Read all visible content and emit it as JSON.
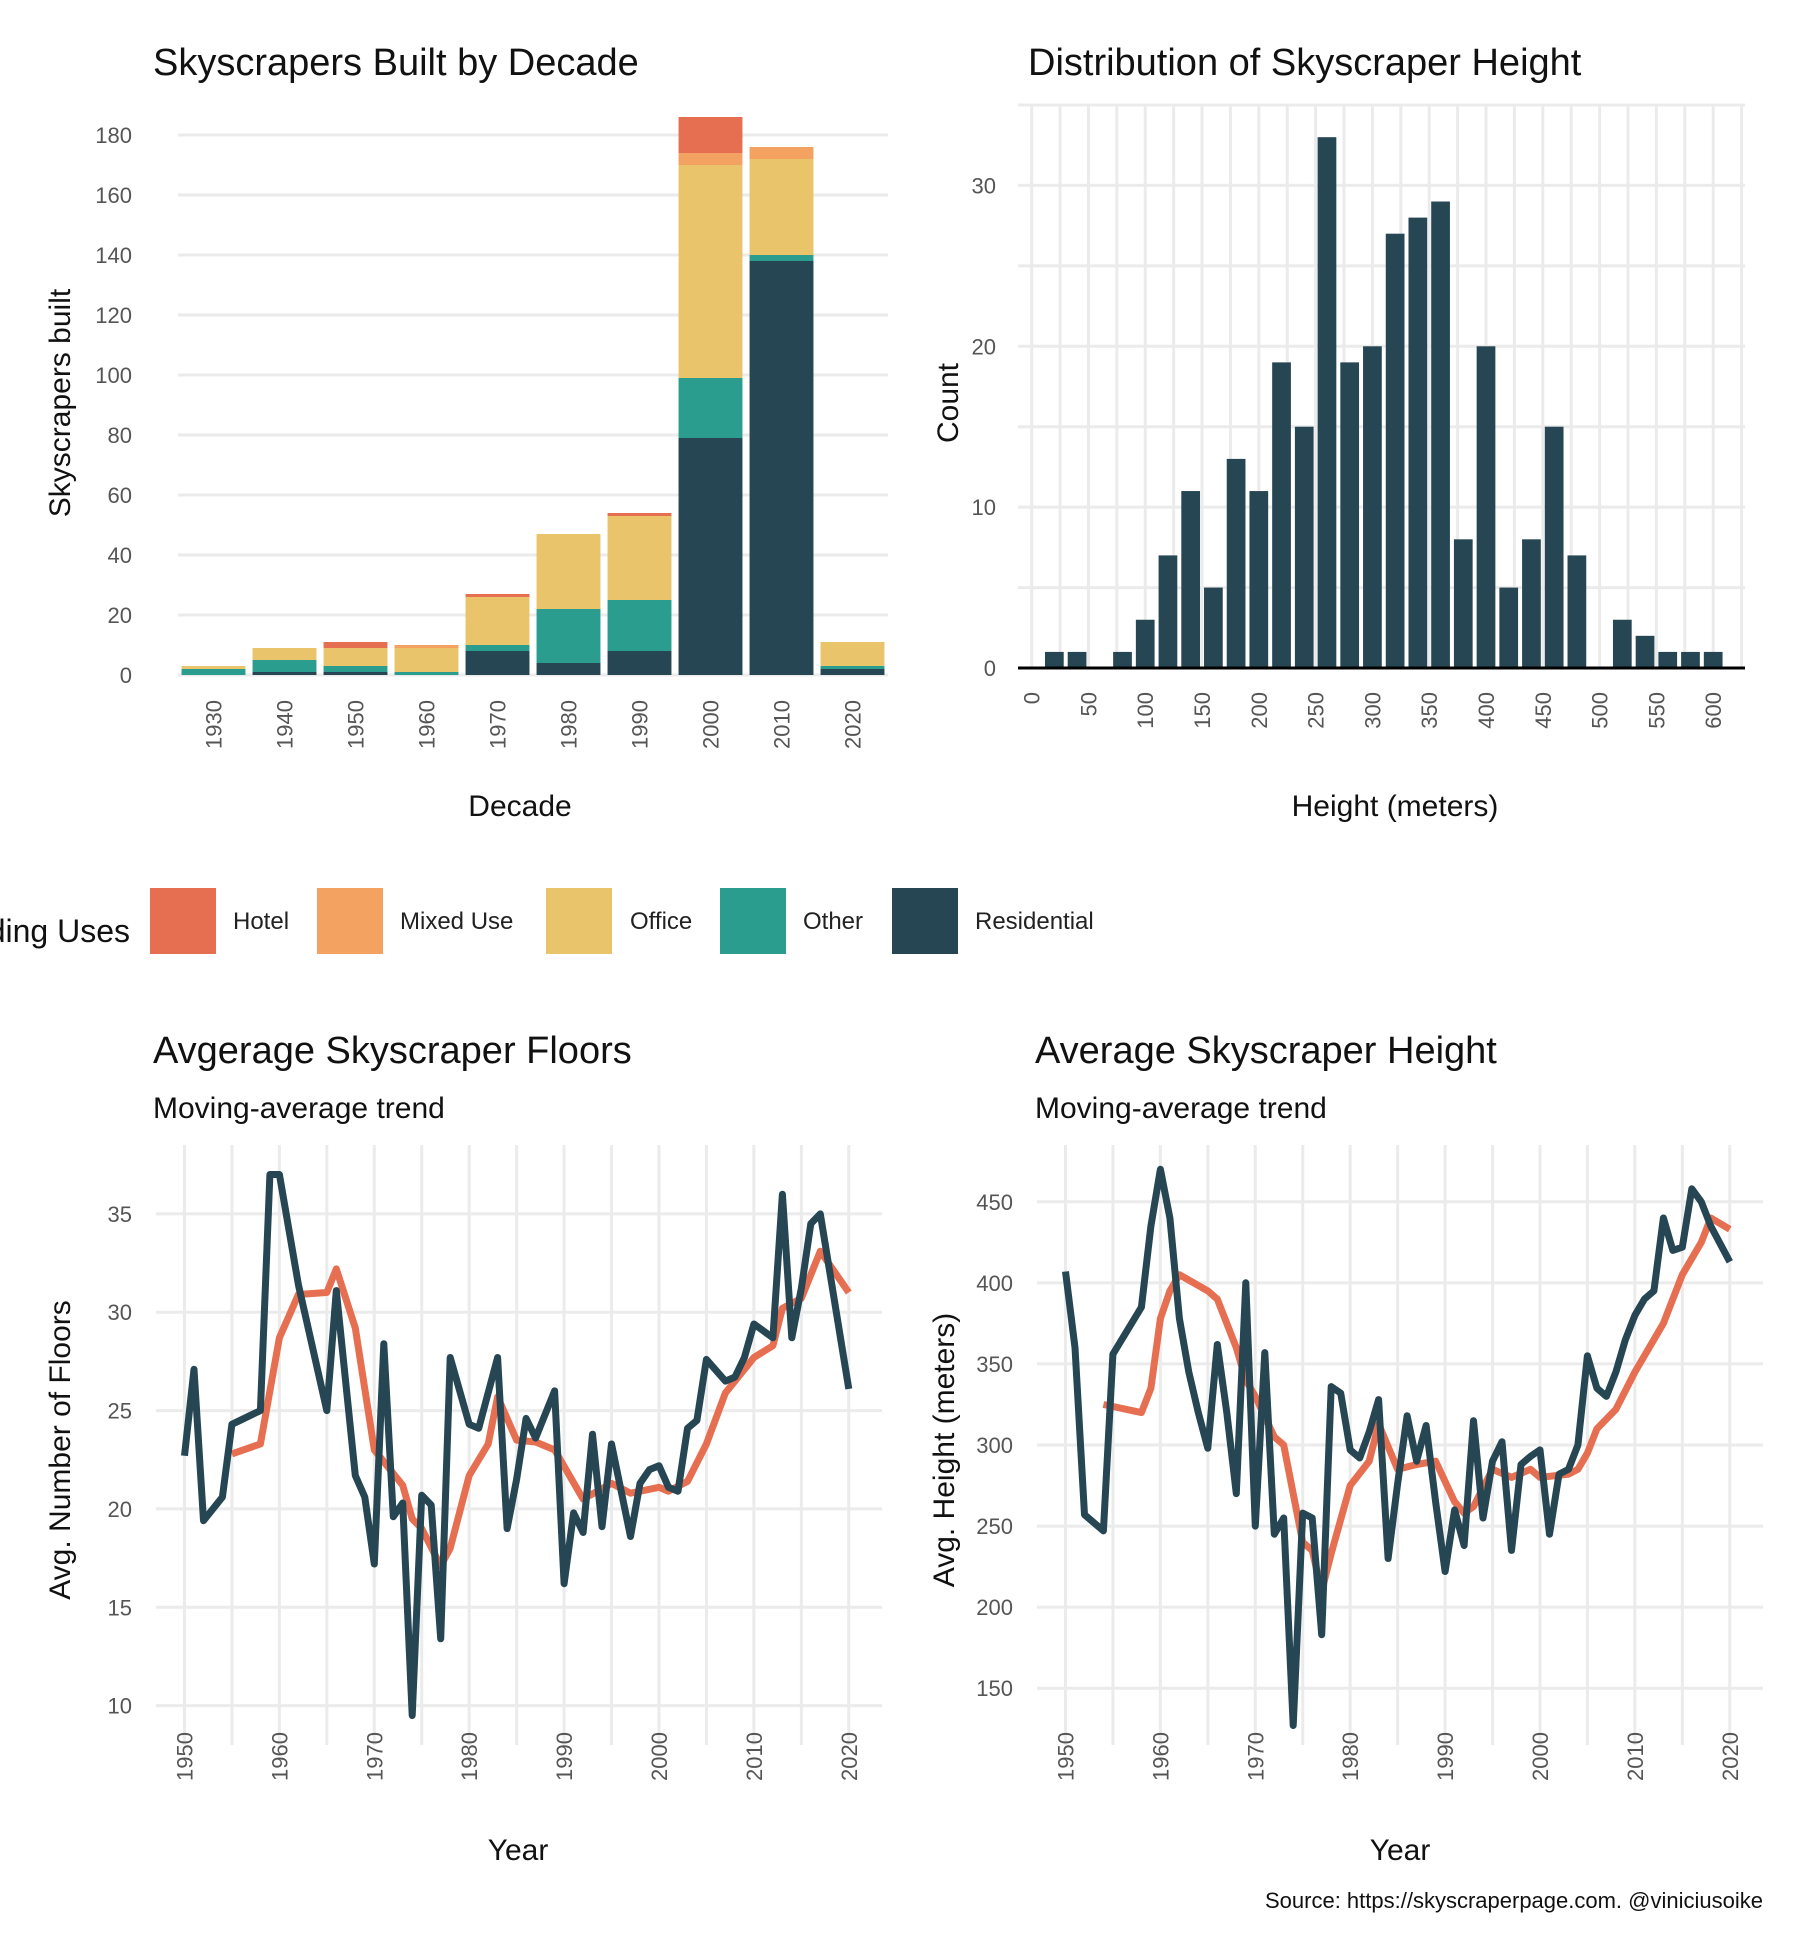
{
  "legend": {
    "title": "Building Uses",
    "items": [
      {
        "label": "Hotel",
        "color": "#e76f51"
      },
      {
        "label": "Mixed Use",
        "color": "#f4a261"
      },
      {
        "label": "Office",
        "color": "#e9c46a"
      },
      {
        "label": "Other",
        "color": "#2a9d8f"
      },
      {
        "label": "Residential",
        "color": "#264653"
      }
    ]
  },
  "source": "Source: https://skyscraperpage.com. @viniciusoike",
  "chart_data": [
    {
      "type": "bar",
      "title": "Skyscrapers Built by Decade",
      "xlabel": "Decade",
      "ylabel": "Skyscrapers built",
      "categories": [
        "1930",
        "1940",
        "1950",
        "1960",
        "1970",
        "1980",
        "1990",
        "2000",
        "2010",
        "2020"
      ],
      "ylim": [
        0,
        190
      ],
      "yticks": [
        0,
        20,
        40,
        60,
        80,
        100,
        120,
        140,
        160,
        180
      ],
      "stacked": true,
      "series": [
        {
          "name": "Residential",
          "color": "#264653",
          "values": [
            0,
            1,
            1,
            0,
            8,
            4,
            8,
            79,
            138,
            2
          ]
        },
        {
          "name": "Other",
          "color": "#2a9d8f",
          "values": [
            2,
            4,
            2,
            1,
            2,
            18,
            17,
            20,
            2,
            1
          ]
        },
        {
          "name": "Office",
          "color": "#e9c46a",
          "values": [
            1,
            4,
            6,
            8,
            16,
            25,
            28,
            71,
            32,
            8
          ]
        },
        {
          "name": "Mixed Use",
          "color": "#f4a261",
          "values": [
            0,
            0,
            0,
            1,
            0,
            0,
            0,
            4,
            4,
            0
          ]
        },
        {
          "name": "Hotel",
          "color": "#e76f51",
          "values": [
            0,
            0,
            2,
            0,
            1,
            0,
            1,
            12,
            0,
            0
          ]
        }
      ]
    },
    {
      "type": "bar",
      "title": "Distribution of Skyscraper Height",
      "xlabel": "Height (meters)",
      "ylabel": "Count",
      "bin_width": 20,
      "bin_centers": [
        20,
        40,
        60,
        80,
        100,
        120,
        140,
        160,
        180,
        200,
        220,
        240,
        260,
        280,
        300,
        320,
        340,
        360,
        380,
        400,
        420,
        440,
        460,
        480,
        500,
        520,
        540,
        560,
        580,
        600
      ],
      "values": [
        1,
        1,
        0,
        1,
        3,
        7,
        11,
        5,
        13,
        11,
        19,
        15,
        33,
        19,
        20,
        27,
        28,
        29,
        8,
        20,
        5,
        8,
        15,
        7,
        0,
        3,
        2,
        1,
        1,
        1
      ],
      "color": "#264653",
      "xlim": [
        -12,
        628
      ],
      "ylim": [
        0,
        35
      ],
      "xticks": [
        0,
        50,
        100,
        150,
        200,
        250,
        300,
        350,
        400,
        450,
        500,
        550,
        600
      ],
      "yticks": [
        0,
        10,
        20,
        30
      ]
    },
    {
      "type": "line",
      "title": "Avgerage Skyscraper Floors",
      "subtitle": "Moving-average trend",
      "xlabel": "Year",
      "ylabel": "Avg. Number of Floors",
      "xlim": [
        1947,
        2023.5
      ],
      "ylim": [
        8,
        38.5
      ],
      "xticks": [
        1950,
        1960,
        1970,
        1980,
        1990,
        2000,
        2010,
        2020
      ],
      "yticks": [
        10,
        15,
        20,
        25,
        30,
        35
      ],
      "series": [
        {
          "name": "Moving average",
          "color": "#e76f51",
          "x": [
            1955,
            1958,
            1960,
            1962,
            1965,
            1966,
            1968,
            1970,
            1973,
            1974,
            1975,
            1977,
            1978,
            1980,
            1982,
            1983,
            1985,
            1987,
            1989,
            1992,
            1995,
            1997,
            2000,
            2001,
            2003,
            2005,
            2007,
            2010,
            2012,
            2013,
            2015,
            2017,
            2020
          ],
          "y": [
            22.8,
            23.3,
            28.7,
            30.9,
            31.0,
            32.2,
            29.2,
            23.0,
            21.2,
            19.5,
            19.0,
            17.1,
            18.0,
            21.7,
            23.3,
            25.7,
            23.5,
            23.4,
            23.0,
            20.5,
            21.3,
            20.8,
            21.1,
            20.9,
            21.4,
            23.3,
            25.9,
            27.7,
            28.3,
            30.2,
            30.7,
            33.1,
            31.0
          ]
        },
        {
          "name": "Average",
          "color": "#264653",
          "x": [
            1950,
            1951,
            1952,
            1954,
            1955,
            1958,
            1959,
            1960,
            1962,
            1965,
            1966,
            1968,
            1969,
            1970,
            1971,
            1972,
            1973,
            1974,
            1975,
            1976,
            1977,
            1978,
            1980,
            1981,
            1983,
            1984,
            1985,
            1986,
            1987,
            1989,
            1990,
            1991,
            1992,
            1993,
            1994,
            1995,
            1997,
            1998,
            1999,
            2000,
            2001,
            2002,
            2003,
            2004,
            2005,
            2007,
            2008,
            2009,
            2010,
            2012,
            2013,
            2014,
            2015,
            2016,
            2017,
            2020
          ],
          "y": [
            22.7,
            27.1,
            19.4,
            20.6,
            24.3,
            25.0,
            37.0,
            37.0,
            31.4,
            25.0,
            31.1,
            21.7,
            20.6,
            17.2,
            28.4,
            19.6,
            20.3,
            9.5,
            20.7,
            20.2,
            13.4,
            27.7,
            24.3,
            24.1,
            27.7,
            19.0,
            21.5,
            24.6,
            23.6,
            26.0,
            16.2,
            19.8,
            18.8,
            23.8,
            19.1,
            23.3,
            18.6,
            21.3,
            22.0,
            22.2,
            21.1,
            20.9,
            24.1,
            24.5,
            27.6,
            26.5,
            26.7,
            27.7,
            29.4,
            28.7,
            36.0,
            28.7,
            31.2,
            34.5,
            35.0,
            26.1
          ]
        }
      ]
    },
    {
      "type": "line",
      "title": "Average Skyscraper Height",
      "subtitle": "Moving-average trend",
      "xlabel": "Year",
      "ylabel": "Avg. Height (meters)",
      "xlim": [
        1947,
        2023.5
      ],
      "ylim": [
        115,
        485
      ],
      "xticks": [
        1950,
        1960,
        1970,
        1980,
        1990,
        2000,
        2010,
        2020
      ],
      "yticks": [
        150,
        200,
        250,
        300,
        350,
        400,
        450
      ],
      "series": [
        {
          "name": "Moving average",
          "color": "#e76f51",
          "x": [
            1954,
            1958,
            1959,
            1960,
            1961,
            1962,
            1965,
            1966,
            1968,
            1969,
            1970,
            1972,
            1973,
            1975,
            1976,
            1977,
            1978,
            1980,
            1982,
            1983,
            1985,
            1987,
            1989,
            1991,
            1992,
            1993,
            1995,
            1997,
            1999,
            2000,
            2003,
            2004,
            2005,
            2006,
            2008,
            2010,
            2012,
            2013,
            2015,
            2017,
            2018,
            2020
          ],
          "y": [
            325,
            320,
            335,
            378,
            395,
            405,
            395,
            390,
            360,
            340,
            330,
            305,
            300,
            240,
            235,
            210,
            233,
            275,
            290,
            313,
            285,
            288,
            290,
            265,
            258,
            262,
            285,
            280,
            285,
            280,
            282,
            285,
            295,
            310,
            322,
            345,
            365,
            375,
            405,
            425,
            440,
            433
          ]
        },
        {
          "name": "Average",
          "color": "#264653",
          "x": [
            1950,
            1951,
            1952,
            1954,
            1955,
            1958,
            1959,
            1960,
            1961,
            1962,
            1963,
            1964,
            1965,
            1966,
            1967,
            1968,
            1969,
            1970,
            1971,
            1972,
            1973,
            1974,
            1975,
            1976,
            1977,
            1978,
            1979,
            1980,
            1981,
            1982,
            1983,
            1984,
            1985,
            1986,
            1987,
            1988,
            1989,
            1990,
            1991,
            1992,
            1993,
            1994,
            1995,
            1996,
            1997,
            1998,
            1999,
            2000,
            2001,
            2002,
            2003,
            2004,
            2005,
            2006,
            2007,
            2008,
            2009,
            2010,
            2011,
            2012,
            2013,
            2014,
            2015,
            2016,
            2017,
            2018,
            2020
          ],
          "y": [
            407,
            360,
            257,
            247,
            356,
            385,
            435,
            470,
            440,
            378,
            345,
            320,
            298,
            362,
            320,
            270,
            400,
            250,
            357,
            245,
            255,
            127,
            258,
            255,
            183,
            336,
            332,
            297,
            292,
            308,
            328,
            230,
            276,
            318,
            290,
            312,
            265,
            222,
            260,
            238,
            315,
            255,
            290,
            302,
            235,
            288,
            293,
            297,
            245,
            282,
            285,
            300,
            355,
            335,
            330,
            345,
            365,
            380,
            390,
            395,
            440,
            420,
            422,
            458,
            450,
            435,
            413
          ]
        }
      ]
    }
  ]
}
